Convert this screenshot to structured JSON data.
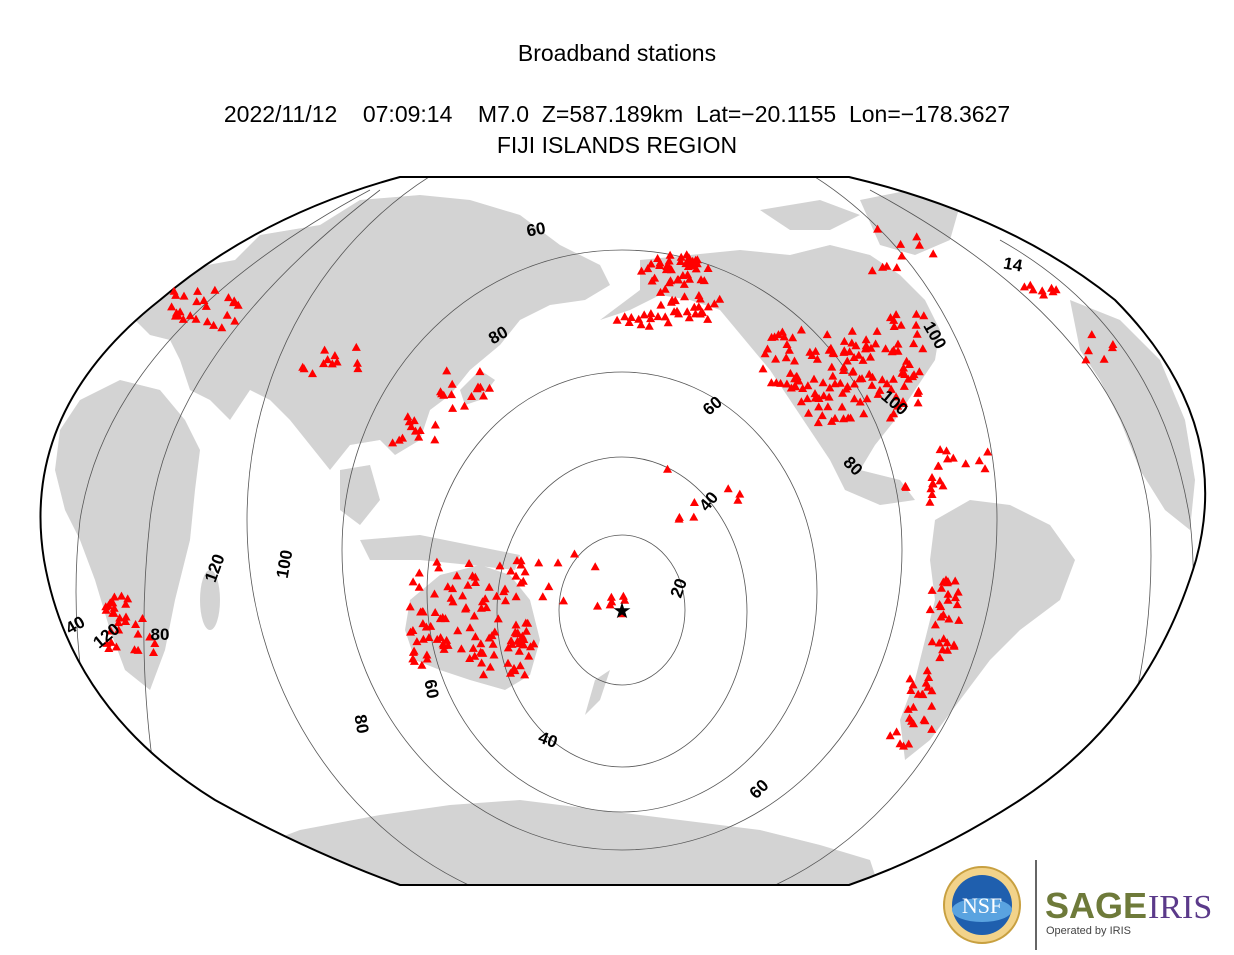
{
  "header": {
    "title": "Broadband stations",
    "event_line": "2022/11/12    07:09:14    M7.0  Z=587.189km  Lat=−20.1155  Lon=−178.3627",
    "region": "FIJI ISLANDS REGION"
  },
  "map": {
    "projection": "Winkel-tripel style global map centred on the epicentre",
    "epicentre": {
      "lat": -20.1155,
      "lon": -178.3627,
      "symbol": "star-icon"
    },
    "station_color": "#ff0000",
    "land_color": "#d3d3d3",
    "contour_interval_deg": 20,
    "contour_labels": [
      "20",
      "40",
      "40",
      "60",
      "60",
      "60",
      "60",
      "80",
      "80",
      "80",
      "80",
      "100",
      "100",
      "100",
      "120",
      "120",
      "14",
      "40"
    ]
  },
  "logos": {
    "nsf_text": "NSF",
    "sage_text": "SAGE",
    "iris_text": "IRIS",
    "operated_by": "Operated by IRIS",
    "sage_color": "#6e7a3a",
    "iris_color": "#5b3a8a"
  }
}
